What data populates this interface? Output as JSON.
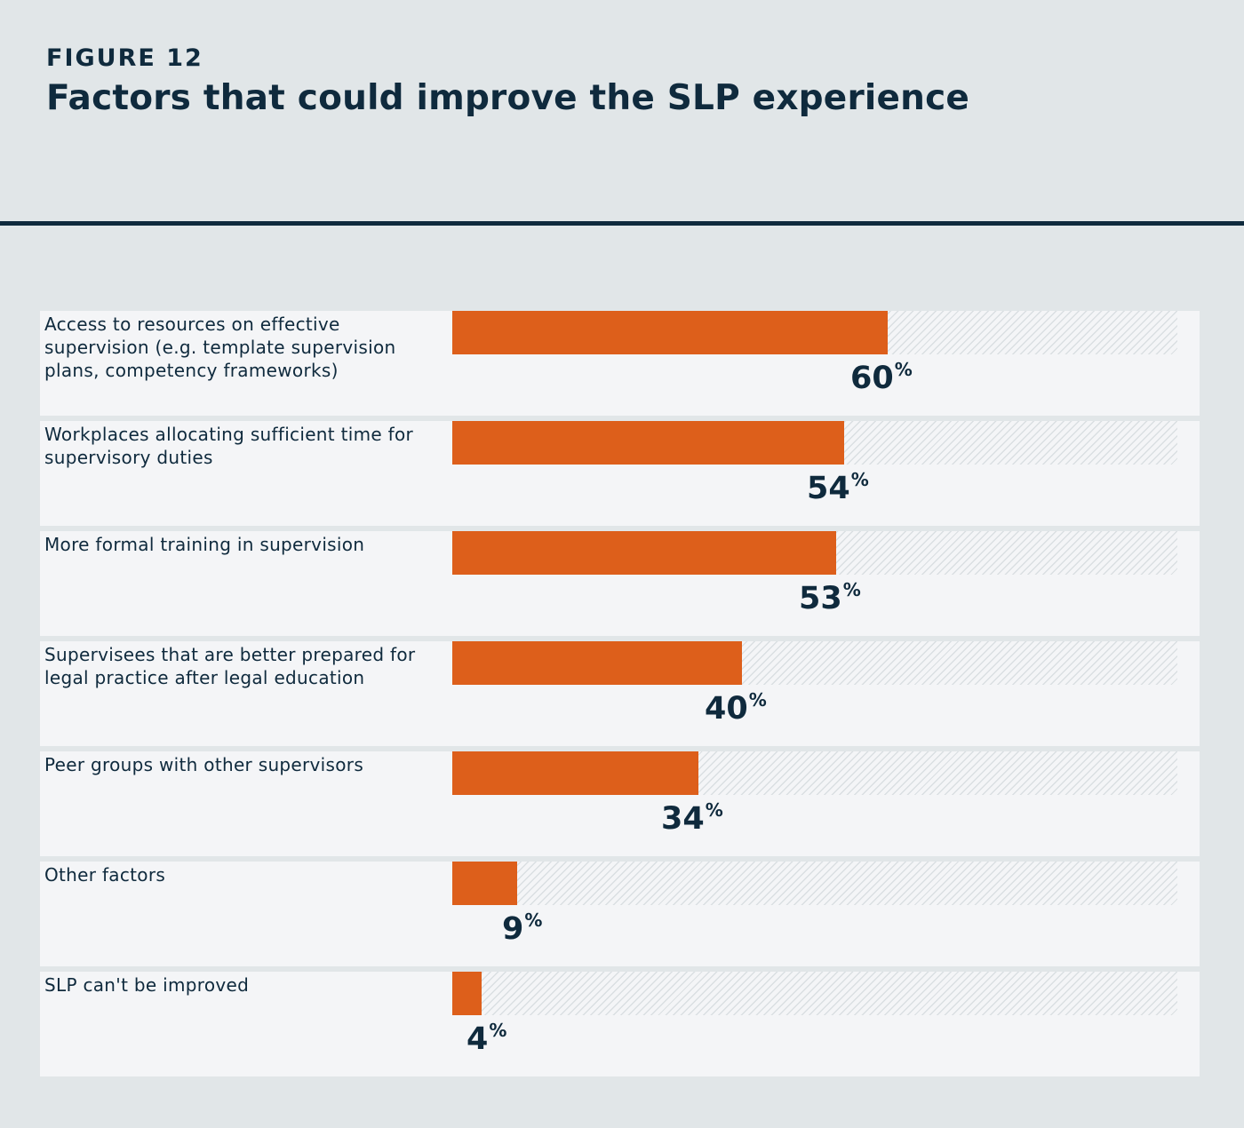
{
  "header": {
    "figure_label": "FIGURE 12",
    "title": "Factors that could improve the SLP experience"
  },
  "colors": {
    "bar": "#dd5f1b",
    "text": "#0f2a3d",
    "background": "#e1e6e8",
    "row_background": "#f4f5f7"
  },
  "chart_data": {
    "type": "bar",
    "orientation": "horizontal",
    "title": "Factors that could improve the SLP experience",
    "xlim": [
      0,
      100
    ],
    "unit": "%",
    "categories": [
      "Access to resources on effective supervision (e.g. template supervision plans, competency frameworks)",
      "Workplaces allocating sufficient time for supervisory duties",
      "More formal training in supervision",
      "Supervisees that are better prepared for legal practice after legal education",
      "Peer groups with other supervisors",
      "Other factors",
      "SLP can't be improved"
    ],
    "values": [
      60,
      54,
      53,
      40,
      34,
      9,
      4
    ],
    "value_labels": [
      "60",
      "54",
      "53",
      "40",
      "34",
      "9",
      "4"
    ]
  }
}
